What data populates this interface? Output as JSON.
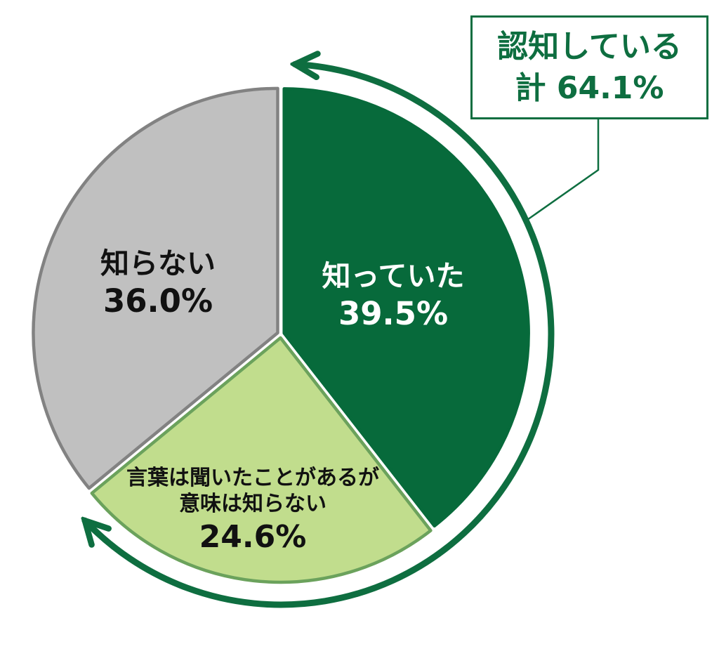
{
  "chart_data": {
    "type": "pie",
    "title": "",
    "start_angle_deg": 0,
    "direction": "clockwise",
    "background": "#ffffff",
    "slices": [
      {
        "label": "知っていた",
        "value_pct": 39.5,
        "display_value": "39.5%",
        "color": "#076a3b",
        "border_color": "#076a3b",
        "label_color": "#ffffff"
      },
      {
        "label": "言葉は聞いたことがあるが意味は知らない",
        "label_line1": "言葉は聞いたことがあるが",
        "label_line2": "意味は知らない",
        "value_pct": 24.6,
        "display_value": "24.6%",
        "color": "#c1dd8d",
        "border_color": "#6ba25c",
        "label_color": "#111111"
      },
      {
        "label": "知らない",
        "value_pct": 36.0,
        "display_value": "36.0%",
        "color": "#c0c0c0",
        "border_color": "#828282",
        "label_color": "#111111"
      }
    ],
    "callout": {
      "line1": "認知している",
      "line2": "計 64.1%",
      "value_pct": 64.1,
      "text_color": "#0e6e40",
      "border_color": "#0e6e40"
    },
    "span_arrow": {
      "color": "#0e6e40",
      "span_pct": 64.1,
      "covers_slices": [
        "知っていた",
        "言葉は聞いたことがあるが意味は知らない"
      ]
    }
  }
}
